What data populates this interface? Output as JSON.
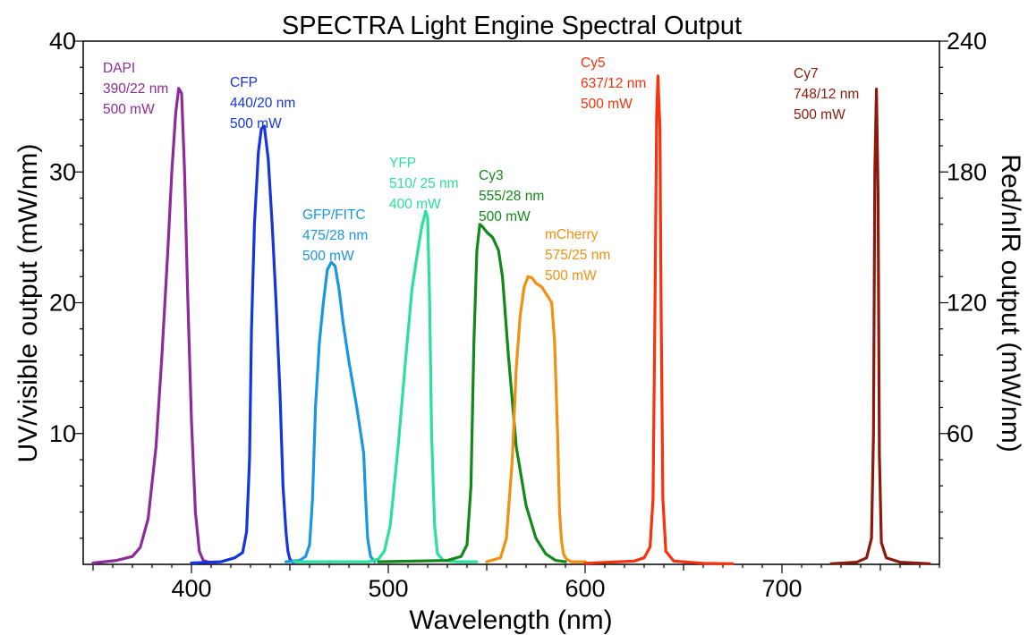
{
  "chart_data": {
    "type": "line",
    "title": "SPECTRA Light Engine Spectral Output",
    "xlabel": "Wavelength (nm)",
    "ylabel": "UV/visible output (mW/nm)",
    "y2label": "Red/nIR output (mW/nm)",
    "xlim": [
      345,
      780
    ],
    "ylim": [
      0,
      40
    ],
    "y2lim": [
      0,
      240
    ],
    "xticks": [
      400,
      500,
      600,
      700
    ],
    "xticks_minor": 10,
    "yticks": [
      10,
      20,
      30,
      40
    ],
    "y2ticks": [
      60,
      120,
      180,
      240
    ],
    "grid": false,
    "legend": "none",
    "series": [
      {
        "name": "DAPI",
        "axis": "left",
        "color": "#8e2a9a",
        "label_lines": [
          "DAPI",
          "390/22 nm",
          "500 mW"
        ],
        "x": [
          350,
          362,
          370,
          374,
          378,
          382,
          385,
          388,
          390,
          392,
          393.5,
          395,
          396.5,
          398,
          400,
          402,
          404,
          406,
          410
        ],
        "y": [
          0.1,
          0.3,
          0.6,
          1.3,
          3.5,
          9,
          16,
          24,
          30,
          34.5,
          36.4,
          36,
          30,
          21,
          11,
          4,
          1,
          0.3,
          0.1
        ]
      },
      {
        "name": "CFP",
        "axis": "left",
        "color": "#1535e0",
        "label_lines": [
          "CFP",
          "440/20 nm",
          "500 mW"
        ],
        "x": [
          400,
          415,
          422,
          426,
          428,
          429.5,
          430.5,
          432,
          434,
          435.5,
          437,
          439,
          441,
          443,
          445,
          446.5,
          448,
          449,
          450,
          452
        ],
        "y": [
          0.1,
          0.2,
          0.5,
          0.9,
          2.5,
          8,
          18,
          26,
          31.5,
          33.3,
          33.5,
          31,
          26,
          20,
          13,
          6,
          2.5,
          1,
          0.4,
          0.1
        ]
      },
      {
        "name": "GFP/FITC",
        "axis": "left",
        "color": "#1996e4",
        "label_lines": [
          "GFP/FITC",
          "475/28 nm",
          "500 mW"
        ],
        "x": [
          448,
          455,
          458,
          460,
          461.5,
          463,
          465,
          467,
          469,
          471,
          473,
          475,
          477,
          480,
          484,
          486,
          487.5,
          488.5,
          489.5,
          491,
          493
        ],
        "y": [
          0.2,
          0.3,
          0.6,
          1.5,
          5,
          12,
          17,
          20,
          22.5,
          23.1,
          22.8,
          21,
          18.5,
          15.5,
          12,
          10,
          8.5,
          5,
          2,
          0.6,
          0.2
        ]
      },
      {
        "name": "YFP",
        "axis": "left",
        "color": "#2be09e",
        "label_lines": [
          "YFP",
          "510/ 25 nm",
          "400 mW"
        ],
        "x": [
          452,
          490,
          495,
          498,
          501,
          505,
          509,
          512,
          515,
          517,
          519,
          520,
          521,
          522,
          523.5,
          525,
          528,
          535,
          545
        ],
        "y": [
          0.2,
          0.2,
          0.4,
          1,
          3,
          9,
          16,
          21,
          24,
          25.8,
          27,
          26.5,
          20,
          10,
          3,
          0.8,
          0.3,
          0.2,
          0.2
        ]
      },
      {
        "name": "Cy3",
        "axis": "left",
        "color": "#12891a",
        "label_lines": [
          "Cy3",
          "555/28 nm",
          "500 mW"
        ],
        "x": [
          495,
          530,
          537,
          540,
          542,
          543.5,
          545,
          546.5,
          548,
          550,
          553,
          556,
          558,
          561,
          565,
          570,
          575,
          580,
          585,
          590
        ],
        "y": [
          0.2,
          0.3,
          0.6,
          1.5,
          6,
          17,
          24,
          26,
          25.8,
          25.4,
          25,
          24,
          22,
          16,
          9,
          4.5,
          2,
          0.8,
          0.3,
          0.2
        ]
      },
      {
        "name": "mCherry",
        "axis": "left",
        "color": "#f4900f",
        "label_lines": [
          "mCherry",
          "575/25 nm",
          "500 mW"
        ],
        "x": [
          550,
          557,
          560,
          563,
          565,
          567,
          569,
          571,
          573,
          575,
          578,
          581,
          583,
          584.5,
          586,
          587,
          588,
          589,
          590.5,
          593,
          600
        ],
        "y": [
          0.2,
          0.5,
          2,
          8,
          15,
          19,
          21.2,
          22,
          21.9,
          21.5,
          21.2,
          20.5,
          20,
          17,
          10,
          4,
          1.8,
          0.8,
          0.4,
          0.2,
          0.2
        ]
      },
      {
        "name": "Cy5",
        "axis": "right",
        "color": "#fb300d",
        "label_lines": [
          "Cy5",
          "637/12 nm",
          "500 mW"
        ],
        "x": [
          600,
          625,
          630,
          633,
          634.5,
          635.5,
          636.3,
          637,
          638,
          638.7,
          639.5,
          641,
          645,
          660,
          675
        ],
        "y": [
          0.5,
          1.5,
          3,
          8,
          30,
          120,
          205,
          224,
          200,
          110,
          30,
          6,
          1.5,
          0.5,
          0.3
        ]
      },
      {
        "name": "Cy7",
        "axis": "right",
        "color": "#8c1a0c",
        "label_lines": [
          "Cy7",
          "748/12 nm",
          "500 mW"
        ],
        "x": [
          725,
          738,
          743,
          745.5,
          746.5,
          747.2,
          748,
          748.8,
          749.5,
          750.5,
          753,
          760,
          775
        ],
        "y": [
          0.3,
          1,
          3,
          12,
          60,
          180,
          218,
          170,
          50,
          10,
          3,
          1,
          0.3
        ]
      }
    ]
  }
}
